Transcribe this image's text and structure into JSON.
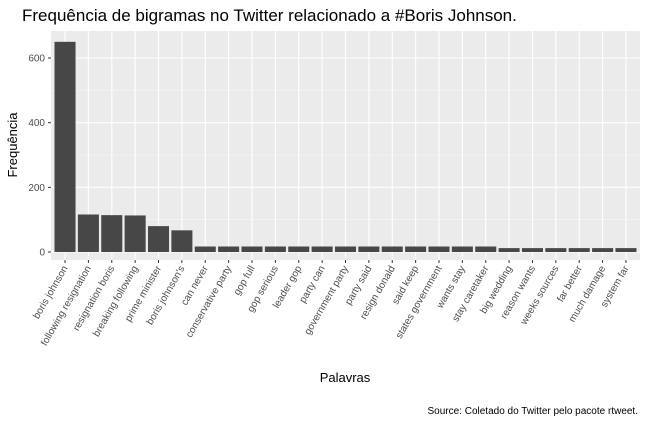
{
  "chart_data": {
    "type": "bar",
    "title": "Frequência de bigramas no Twitter relacionado a #Boris Johnson.",
    "xlabel": "Palavras",
    "ylabel": "Frequência",
    "caption": "Source: Coletado do Twitter pelo pacote rtweet.",
    "ylim": [
      0,
      680
    ],
    "yticks": [
      0,
      200,
      400,
      600
    ],
    "categories": [
      "boris johnson",
      "following resignation",
      "resignation boris",
      "breaking following",
      "prime minister",
      "boris johnson's",
      "can never",
      "conservative party",
      "gop full",
      "gop serious",
      "leader gop",
      "party can",
      "government party",
      "party said",
      "resign donald",
      "said keep",
      "states government",
      "wants stay",
      "stay caretaker",
      "big wedding",
      "reason wants",
      "weeks sources",
      "far better",
      "much damage",
      "system far"
    ],
    "values": [
      650,
      116,
      114,
      113,
      80,
      67,
      17,
      17,
      17,
      17,
      17,
      17,
      17,
      17,
      17,
      17,
      17,
      17,
      17,
      12,
      12,
      12,
      12,
      12,
      12
    ],
    "colors": {
      "bar": "#474747",
      "panel": "#ebebeb",
      "grid_major": "#ffffff",
      "grid_minor": "#f5f5f5"
    }
  }
}
